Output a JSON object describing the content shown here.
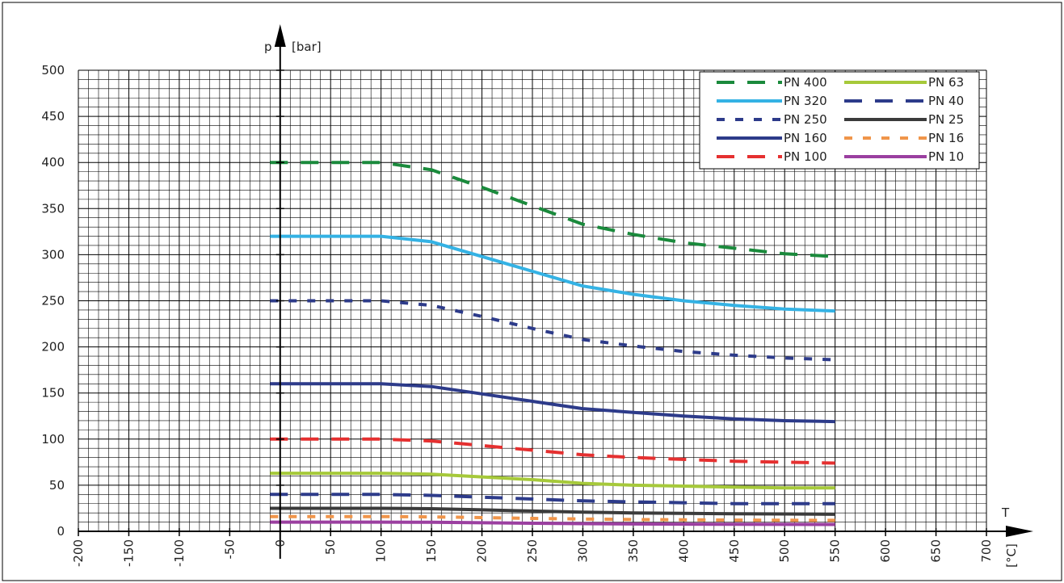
{
  "chart_data": {
    "type": "line",
    "title": "",
    "xlabel": "T",
    "xunit": "[°C]",
    "ylabel": "p",
    "yunit": "[bar]",
    "xlim": [
      -200,
      700
    ],
    "ylim": [
      0,
      500
    ],
    "x_ticks": [
      -200,
      -150,
      -100,
      -50,
      0,
      50,
      100,
      150,
      200,
      250,
      300,
      350,
      400,
      450,
      500,
      550,
      600,
      650,
      700
    ],
    "y_ticks": [
      0,
      50,
      100,
      150,
      200,
      250,
      300,
      350,
      400,
      450,
      500
    ],
    "grid": true,
    "legend_position": "top-right",
    "series": [
      {
        "name": "PN 400",
        "color": "#1a8a3c",
        "style": "dashed",
        "x": [
          -10,
          100,
          150,
          200,
          250,
          300,
          350,
          400,
          450,
          500,
          550
        ],
        "y": [
          400,
          400,
          392,
          373,
          353,
          333,
          322,
          313,
          307,
          301,
          298
        ]
      },
      {
        "name": "PN 320",
        "color": "#34b2e4",
        "style": "solid",
        "x": [
          -10,
          100,
          150,
          200,
          250,
          300,
          350,
          400,
          450,
          500,
          550
        ],
        "y": [
          320,
          320,
          314,
          298,
          282,
          266,
          257,
          250,
          245,
          241,
          239
        ]
      },
      {
        "name": "PN 250",
        "color": "#2d3b8a",
        "style": "dotted",
        "x": [
          -10,
          100,
          150,
          200,
          250,
          300,
          350,
          400,
          450,
          500,
          550
        ],
        "y": [
          250,
          250,
          245,
          233,
          220,
          208,
          201,
          195,
          191,
          188,
          186
        ]
      },
      {
        "name": "PN 160",
        "color": "#2d3b8a",
        "style": "solid",
        "x": [
          -10,
          100,
          150,
          200,
          250,
          300,
          350,
          400,
          450,
          500,
          550
        ],
        "y": [
          160,
          160,
          157,
          149,
          141,
          133,
          129,
          125,
          122,
          120,
          119
        ]
      },
      {
        "name": "PN 100",
        "color": "#e53030",
        "style": "dashed",
        "x": [
          -10,
          100,
          150,
          200,
          250,
          300,
          350,
          400,
          450,
          500,
          550
        ],
        "y": [
          100,
          100,
          98,
          93,
          88,
          83,
          80,
          78,
          76,
          75,
          74
        ]
      },
      {
        "name": "PN 63",
        "color": "#a6c93a",
        "style": "solid",
        "x": [
          -10,
          100,
          150,
          200,
          250,
          300,
          350,
          400,
          450,
          500,
          550
        ],
        "y": [
          63,
          63,
          62,
          59,
          56,
          52,
          50,
          49,
          48,
          47,
          47
        ]
      },
      {
        "name": "PN 40",
        "color": "#2d3b8a",
        "style": "dashed",
        "x": [
          -10,
          100,
          150,
          200,
          250,
          300,
          350,
          400,
          450,
          500,
          550
        ],
        "y": [
          40,
          40,
          39,
          37,
          35,
          33,
          32,
          31,
          30,
          30,
          30
        ]
      },
      {
        "name": "PN 25",
        "color": "#3b3b3b",
        "style": "solid",
        "x": [
          -10,
          100,
          150,
          200,
          250,
          300,
          350,
          400,
          450,
          500,
          550
        ],
        "y": [
          25,
          25,
          24.5,
          23.3,
          22,
          20.8,
          20,
          19.5,
          19,
          18.8,
          18.5
        ]
      },
      {
        "name": "PN 16",
        "color": "#f0954a",
        "style": "dotted",
        "x": [
          -10,
          100,
          150,
          200,
          250,
          300,
          350,
          400,
          450,
          500,
          550
        ],
        "y": [
          16,
          16,
          15.7,
          14.9,
          14,
          13.3,
          12.8,
          12.5,
          12.2,
          12,
          11.9
        ]
      },
      {
        "name": "PN 10",
        "color": "#9b3fa0",
        "style": "solid",
        "x": [
          -10,
          100,
          150,
          200,
          250,
          300,
          350,
          400,
          450,
          500,
          550
        ],
        "y": [
          10,
          10,
          9.8,
          9.3,
          8.8,
          8.3,
          8,
          7.8,
          7.6,
          7.5,
          7.4
        ]
      }
    ]
  }
}
